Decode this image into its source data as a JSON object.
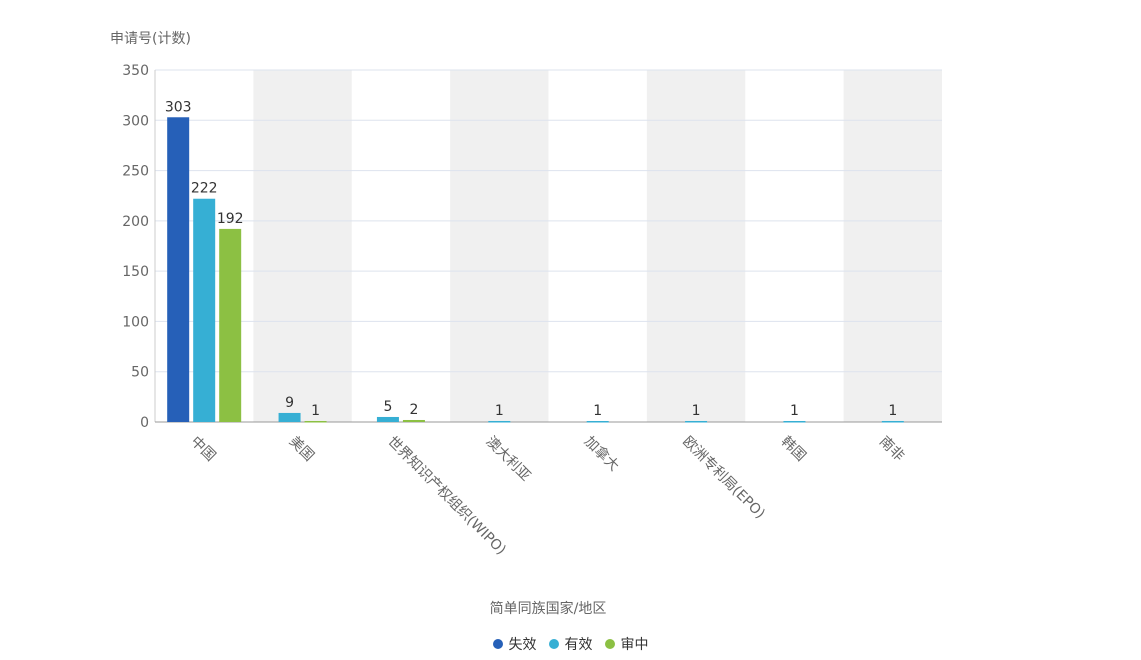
{
  "chart_data": {
    "type": "bar",
    "ylabel": "申请号(计数)",
    "xlabel": "简单同族国家/地区",
    "ylim": [
      0,
      350
    ],
    "yticks": [
      0,
      50,
      100,
      150,
      200,
      250,
      300,
      350
    ],
    "grid": true,
    "legend_position": "bottom-center",
    "categories": [
      "中国",
      "美国",
      "世界知识产权组织(WIPO)",
      "澳大利亚",
      "加拿大",
      "欧洲专利局(EPO)",
      "韩国",
      "南非"
    ],
    "series": [
      {
        "name": "失效",
        "color": "#2660b8",
        "values": [
          303,
          null,
          null,
          null,
          null,
          null,
          null,
          null
        ]
      },
      {
        "name": "有效",
        "color": "#36afd4",
        "values": [
          222,
          9,
          5,
          1,
          1,
          1,
          1,
          1
        ]
      },
      {
        "name": "审中",
        "color": "#8cc043",
        "values": [
          192,
          1,
          2,
          null,
          null,
          null,
          null,
          null
        ]
      }
    ]
  }
}
